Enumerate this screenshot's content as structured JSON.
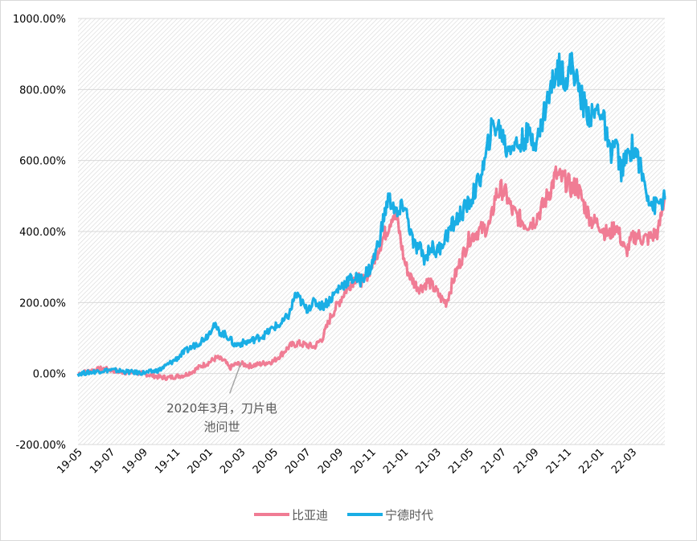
{
  "chart_data": {
    "type": "line",
    "title": "",
    "xlabel": "",
    "ylabel": "",
    "ylim": [
      -200,
      1000
    ],
    "y_ticks": [
      -200,
      0,
      200,
      400,
      600,
      800,
      1000
    ],
    "y_tick_labels": [
      "-200.00%",
      "0.00%",
      "200.00%",
      "400.00%",
      "600.00%",
      "800.00%",
      "1000.00%"
    ],
    "x_tick_labels": [
      "19-05",
      "19-07",
      "19-09",
      "19-11",
      "20-01",
      "20-03",
      "20-05",
      "20-07",
      "20-09",
      "20-11",
      "21-01",
      "21-03",
      "21-05",
      "21-07",
      "21-09",
      "21-11",
      "22-01",
      "22-03"
    ],
    "x_range_months": [
      0,
      12.0
    ],
    "x_domain": [
      0,
      36
    ],
    "grid": "horizontal",
    "legend_position": "bottom",
    "annotation": {
      "lines": [
        "2020年3月，刀片电",
        "池问世"
      ],
      "x": 10.0,
      "y": 30
    },
    "series": [
      {
        "name": "比亚迪",
        "color": "#f07c94",
        "points": [
          [
            0,
            0
          ],
          [
            0.5,
            5
          ],
          [
            1,
            10
          ],
          [
            1.5,
            14
          ],
          [
            2,
            10
          ],
          [
            2.5,
            5
          ],
          [
            3,
            3
          ],
          [
            3.5,
            2
          ],
          [
            4,
            0
          ],
          [
            4.5,
            -5
          ],
          [
            5,
            -10
          ],
          [
            5.5,
            -12
          ],
          [
            6,
            -8
          ],
          [
            6.5,
            -5
          ],
          [
            7,
            5
          ],
          [
            7.5,
            20
          ],
          [
            8,
            30
          ],
          [
            8.5,
            45
          ],
          [
            9,
            35
          ],
          [
            9.3,
            15
          ],
          [
            9.6,
            25
          ],
          [
            10,
            28
          ],
          [
            10.5,
            22
          ],
          [
            11,
            25
          ],
          [
            11.5,
            30
          ],
          [
            12,
            35
          ],
          [
            12.5,
            55
          ],
          [
            13,
            78
          ],
          [
            13.5,
            85
          ],
          [
            14,
            80
          ],
          [
            14.5,
            75
          ],
          [
            15,
            100
          ],
          [
            15.5,
            160
          ],
          [
            16,
            200
          ],
          [
            16.5,
            240
          ],
          [
            17,
            270
          ],
          [
            17.5,
            260
          ],
          [
            18,
            300
          ],
          [
            18.5,
            360
          ],
          [
            19,
            410
          ],
          [
            19.3,
            450
          ],
          [
            19.6,
            430
          ],
          [
            20,
            320
          ],
          [
            20.3,
            280
          ],
          [
            20.7,
            250
          ],
          [
            21,
            240
          ],
          [
            21.5,
            260
          ],
          [
            22,
            230
          ],
          [
            22.3,
            210
          ],
          [
            22.6,
            200
          ],
          [
            23,
            260
          ],
          [
            23.5,
            320
          ],
          [
            24,
            380
          ],
          [
            24.5,
            400
          ],
          [
            25,
            410
          ],
          [
            25.3,
            420
          ],
          [
            25.6,
            500
          ],
          [
            26,
            520
          ],
          [
            26.3,
            500
          ],
          [
            26.6,
            460
          ],
          [
            27,
            440
          ],
          [
            27.5,
            420
          ],
          [
            28,
            430
          ],
          [
            28.5,
            470
          ],
          [
            29,
            520
          ],
          [
            29.3,
            560
          ],
          [
            29.6,
            550
          ],
          [
            30,
            540
          ],
          [
            30.3,
            520
          ],
          [
            30.6,
            530
          ],
          [
            31,
            480
          ],
          [
            31.5,
            430
          ],
          [
            32,
            420
          ],
          [
            32.3,
            400
          ],
          [
            32.6,
            390
          ],
          [
            33,
            420
          ],
          [
            33.3,
            380
          ],
          [
            33.6,
            340
          ],
          [
            34,
            380
          ],
          [
            34.3,
            390
          ],
          [
            34.6,
            380
          ],
          [
            35,
            380
          ],
          [
            35.3,
            390
          ],
          [
            35.6,
            400
          ],
          [
            36,
            500
          ]
        ]
      },
      {
        "name": "宁德时代",
        "color": "#1aaee5",
        "points": [
          [
            0,
            0
          ],
          [
            0.5,
            2
          ],
          [
            1,
            5
          ],
          [
            1.5,
            8
          ],
          [
            2,
            10
          ],
          [
            2.5,
            8
          ],
          [
            3,
            5
          ],
          [
            3.5,
            3
          ],
          [
            4,
            2
          ],
          [
            4.5,
            5
          ],
          [
            5,
            10
          ],
          [
            5.5,
            25
          ],
          [
            6,
            40
          ],
          [
            6.5,
            60
          ],
          [
            7,
            75
          ],
          [
            7.5,
            90
          ],
          [
            8,
            110
          ],
          [
            8.3,
            140
          ],
          [
            8.6,
            120
          ],
          [
            9,
            110
          ],
          [
            9.3,
            100
          ],
          [
            9.6,
            80
          ],
          [
            10,
            85
          ],
          [
            10.5,
            90
          ],
          [
            11,
            100
          ],
          [
            11.5,
            110
          ],
          [
            12,
            130
          ],
          [
            12.5,
            140
          ],
          [
            13,
            170
          ],
          [
            13.3,
            220
          ],
          [
            13.6,
            210
          ],
          [
            14,
            180
          ],
          [
            14.3,
            195
          ],
          [
            14.6,
            200
          ],
          [
            15,
            190
          ],
          [
            15.5,
            210
          ],
          [
            16,
            240
          ],
          [
            16.5,
            260
          ],
          [
            17,
            270
          ],
          [
            17.3,
            260
          ],
          [
            17.6,
            280
          ],
          [
            18,
            300
          ],
          [
            18.5,
            380
          ],
          [
            19,
            490
          ],
          [
            19.3,
            480
          ],
          [
            19.6,
            440
          ],
          [
            20,
            480
          ],
          [
            20.3,
            420
          ],
          [
            20.6,
            360
          ],
          [
            21,
            350
          ],
          [
            21.3,
            320
          ],
          [
            21.6,
            360
          ],
          [
            22,
            340
          ],
          [
            22.5,
            380
          ],
          [
            23,
            420
          ],
          [
            23.5,
            450
          ],
          [
            24,
            480
          ],
          [
            24.5,
            530
          ],
          [
            25,
            600
          ],
          [
            25.3,
            680
          ],
          [
            25.6,
            700
          ],
          [
            26,
            680
          ],
          [
            26.3,
            630
          ],
          [
            26.6,
            650
          ],
          [
            27,
            640
          ],
          [
            27.5,
            670
          ],
          [
            28,
            660
          ],
          [
            28.3,
            670
          ],
          [
            28.6,
            740
          ],
          [
            29,
            800
          ],
          [
            29.3,
            850
          ],
          [
            29.6,
            860
          ],
          [
            30,
            830
          ],
          [
            30.3,
            880
          ],
          [
            30.6,
            820
          ],
          [
            31,
            760
          ],
          [
            31.5,
            720
          ],
          [
            32,
            750
          ],
          [
            32.3,
            700
          ],
          [
            32.6,
            620
          ],
          [
            33,
            650
          ],
          [
            33.3,
            570
          ],
          [
            33.6,
            600
          ],
          [
            34,
            640
          ],
          [
            34.3,
            620
          ],
          [
            34.6,
            560
          ],
          [
            35,
            500
          ],
          [
            35.3,
            470
          ],
          [
            35.6,
            480
          ],
          [
            36,
            490
          ]
        ]
      }
    ]
  }
}
